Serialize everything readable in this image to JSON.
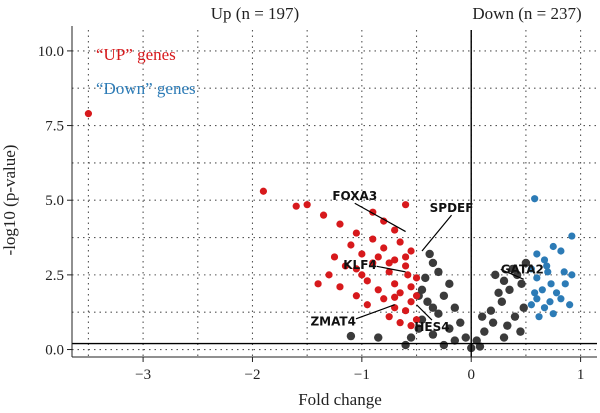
{
  "chart_data": {
    "type": "scatter",
    "title": "",
    "xlabel": "Fold change",
    "ylabel": "-log10 (p-value)",
    "xlim": [
      -3.65,
      1.15
    ],
    "ylim": [
      -0.25,
      10.7
    ],
    "x_ticks": [
      "-3",
      "-2",
      "-1",
      "0",
      "1"
    ],
    "y_ticks": [
      "0.0",
      "2.5",
      "5.0",
      "7.5",
      "10.0"
    ],
    "grid": true,
    "hline": 0.2,
    "vline": 0,
    "top_labels": {
      "up": "Up (n = 197)",
      "down": "Down (n = 237)"
    },
    "legend": [
      {
        "label": "“UP” genes",
        "color": "#d7191c"
      },
      {
        "label": "“Down” genes",
        "color": "#2c7bb6"
      }
    ],
    "series": [
      {
        "name": "“UP” genes",
        "color": "#d7191c",
        "points": [
          [
            -3.5,
            7.9
          ],
          [
            -1.9,
            5.3
          ],
          [
            -1.6,
            4.8
          ],
          [
            -1.5,
            4.85
          ],
          [
            -1.35,
            4.5
          ],
          [
            -1.2,
            4.2
          ],
          [
            -1.05,
            3.9
          ],
          [
            -0.9,
            4.6
          ],
          [
            -0.8,
            4.3
          ],
          [
            -0.6,
            4.85
          ],
          [
            -0.7,
            4.0
          ],
          [
            -0.9,
            3.7
          ],
          [
            -1.1,
            3.5
          ],
          [
            -1.25,
            3.1
          ],
          [
            -1.0,
            3.2
          ],
          [
            -0.8,
            3.4
          ],
          [
            -0.65,
            3.6
          ],
          [
            -0.55,
            3.3
          ],
          [
            -0.7,
            3.0
          ],
          [
            -0.9,
            2.9
          ],
          [
            -1.15,
            2.8
          ],
          [
            -1.3,
            2.5
          ],
          [
            -1.4,
            2.2
          ],
          [
            -1.0,
            2.5
          ],
          [
            -0.75,
            2.6
          ],
          [
            -0.6,
            2.8
          ],
          [
            -0.5,
            2.4
          ],
          [
            -0.55,
            2.1
          ],
          [
            -0.7,
            2.2
          ],
          [
            -0.85,
            2.0
          ],
          [
            -1.05,
            1.8
          ],
          [
            -0.95,
            1.5
          ],
          [
            -0.8,
            1.7
          ],
          [
            -0.65,
            1.9
          ],
          [
            -0.55,
            1.6
          ],
          [
            -0.6,
            1.3
          ],
          [
            -0.7,
            1.4
          ],
          [
            -0.75,
            1.1
          ],
          [
            -0.5,
            1.0
          ],
          [
            -0.55,
            0.8
          ],
          [
            -0.65,
            0.9
          ],
          [
            -0.5,
            1.8
          ],
          [
            -1.2,
            2.1
          ],
          [
            -0.95,
            2.3
          ],
          [
            -0.75,
            2.9
          ],
          [
            -0.85,
            3.1
          ],
          [
            -1.05,
            2.7
          ],
          [
            -0.6,
            3.1
          ],
          [
            -0.7,
            1.75
          ],
          [
            -0.58,
            2.5
          ]
        ]
      },
      {
        "name": "“Down” genes",
        "color": "#2c7bb6",
        "points": [
          [
            0.58,
            5.05
          ],
          [
            0.92,
            3.8
          ],
          [
            0.75,
            3.45
          ],
          [
            0.6,
            3.2
          ],
          [
            0.67,
            3.0
          ],
          [
            0.82,
            3.3
          ],
          [
            0.55,
            2.7
          ],
          [
            0.7,
            2.6
          ],
          [
            0.85,
            2.6
          ],
          [
            0.92,
            2.5
          ],
          [
            0.6,
            2.4
          ],
          [
            0.73,
            2.2
          ],
          [
            0.65,
            2.0
          ],
          [
            0.78,
            1.9
          ],
          [
            0.6,
            1.7
          ],
          [
            0.72,
            1.6
          ],
          [
            0.82,
            1.7
          ],
          [
            0.55,
            1.5
          ],
          [
            0.67,
            1.4
          ],
          [
            0.75,
            1.2
          ],
          [
            0.62,
            1.1
          ],
          [
            0.58,
            1.9
          ],
          [
            0.69,
            2.8
          ],
          [
            0.86,
            2.2
          ],
          [
            0.9,
            1.5
          ]
        ]
      },
      {
        "name": "",
        "color": "#3b3b3b",
        "points": [
          [
            -0.38,
            3.2
          ],
          [
            -0.35,
            2.9
          ],
          [
            -0.3,
            2.6
          ],
          [
            -0.42,
            2.4
          ],
          [
            -0.2,
            2.2
          ],
          [
            -0.45,
            2.0
          ],
          [
            -0.25,
            1.8
          ],
          [
            -0.4,
            1.6
          ],
          [
            -0.15,
            1.4
          ],
          [
            -0.3,
            1.2
          ],
          [
            -0.45,
            1.0
          ],
          [
            -0.1,
            0.9
          ],
          [
            -0.2,
            0.7
          ],
          [
            -0.35,
            0.5
          ],
          [
            -0.05,
            0.4
          ],
          [
            -0.15,
            0.3
          ],
          [
            -0.25,
            0.15
          ],
          [
            0.0,
            0.05
          ],
          [
            0.05,
            0.3
          ],
          [
            0.12,
            0.6
          ],
          [
            0.2,
            0.9
          ],
          [
            0.18,
            1.3
          ],
          [
            0.28,
            1.6
          ],
          [
            0.35,
            2.0
          ],
          [
            0.3,
            2.3
          ],
          [
            0.42,
            2.5
          ],
          [
            0.38,
            2.7
          ],
          [
            0.46,
            2.2
          ],
          [
            0.25,
            1.9
          ],
          [
            0.48,
            1.4
          ],
          [
            0.4,
            1.1
          ],
          [
            0.33,
            0.8
          ],
          [
            0.1,
            1.1
          ],
          [
            0.45,
            0.6
          ],
          [
            -0.48,
            0.7
          ],
          [
            -0.48,
            1.8
          ],
          [
            -0.35,
            1.4
          ],
          [
            0.22,
            2.5
          ],
          [
            0.5,
            2.9
          ],
          [
            -0.55,
            0.4
          ],
          [
            -0.85,
            0.4
          ],
          [
            -1.1,
            0.45
          ],
          [
            -0.6,
            0.15
          ],
          [
            0.08,
            0.1
          ],
          [
            0.3,
            0.4
          ]
        ]
      }
    ],
    "annotations": [
      {
        "label": "FOXA3",
        "x": -0.6,
        "y": 3.95
      },
      {
        "label": "SPDEF",
        "x": -0.45,
        "y": 3.3
      },
      {
        "label": "KLF4",
        "x": -0.6,
        "y": 2.6
      },
      {
        "label": "GATA2",
        "x": 0.48,
        "y": 2.35
      },
      {
        "label": "ZMAT4",
        "x": -0.7,
        "y": 1.5
      },
      {
        "label": "HES4",
        "x": -0.5,
        "y": 1.5
      }
    ]
  }
}
